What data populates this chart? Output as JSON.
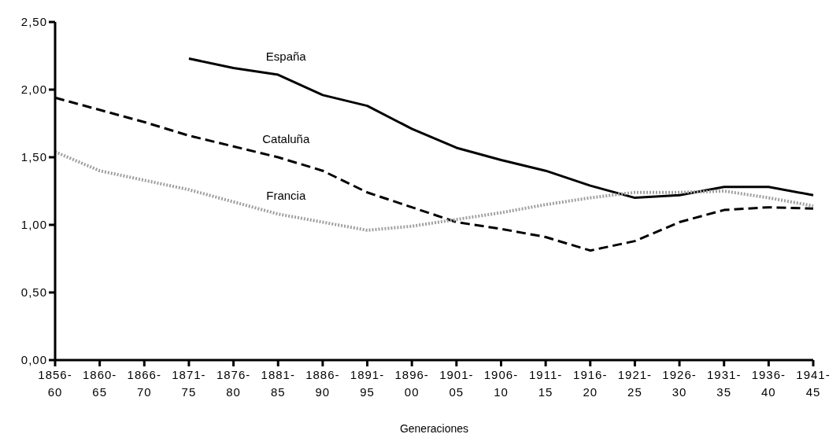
{
  "chart_data": {
    "type": "line",
    "xlabel": "Generaciones",
    "categories": [
      "1856-60",
      "1860-65",
      "1866-70",
      "1871-75",
      "1876-80",
      "1881-85",
      "1886-90",
      "1891-95",
      "1896-00",
      "1901-05",
      "1906-10",
      "1911-15",
      "1916-20",
      "1921-25",
      "1926-30",
      "1931-35",
      "1936-40",
      "1941-45"
    ],
    "series": [
      {
        "name": "España",
        "color": "#000000",
        "line_style": "solid",
        "values": [
          null,
          null,
          null,
          2.23,
          2.16,
          2.11,
          1.96,
          1.88,
          1.71,
          1.57,
          1.48,
          1.4,
          1.29,
          1.2,
          1.22,
          1.28,
          1.28,
          1.22
        ]
      },
      {
        "name": "Cataluña",
        "color": "#000000",
        "line_style": "dashed",
        "values": [
          1.94,
          1.85,
          1.76,
          1.66,
          1.58,
          1.5,
          1.4,
          1.24,
          1.13,
          1.02,
          0.97,
          0.91,
          0.81,
          0.88,
          1.02,
          1.11,
          1.13,
          1.12
        ]
      },
      {
        "name": "Francia",
        "color": "#a0a0a0",
        "line_style": "dotted",
        "values": [
          1.54,
          1.4,
          1.33,
          1.26,
          1.17,
          1.08,
          1.02,
          0.96,
          0.99,
          1.04,
          1.09,
          1.15,
          1.2,
          1.24,
          1.24,
          1.25,
          1.2,
          1.14
        ]
      }
    ],
    "ylim": [
      0,
      2.5
    ],
    "yticks": [
      {
        "value": 0,
        "label": "0,00"
      },
      {
        "value": 0.5,
        "label": "0,50"
      },
      {
        "value": 1,
        "label": "1,00"
      },
      {
        "value": 1.5,
        "label": "1,50"
      },
      {
        "value": 2,
        "label": "2,00"
      },
      {
        "value": 2.5,
        "label": "2,50"
      }
    ],
    "grid": false,
    "legend": false,
    "marker": "none"
  }
}
